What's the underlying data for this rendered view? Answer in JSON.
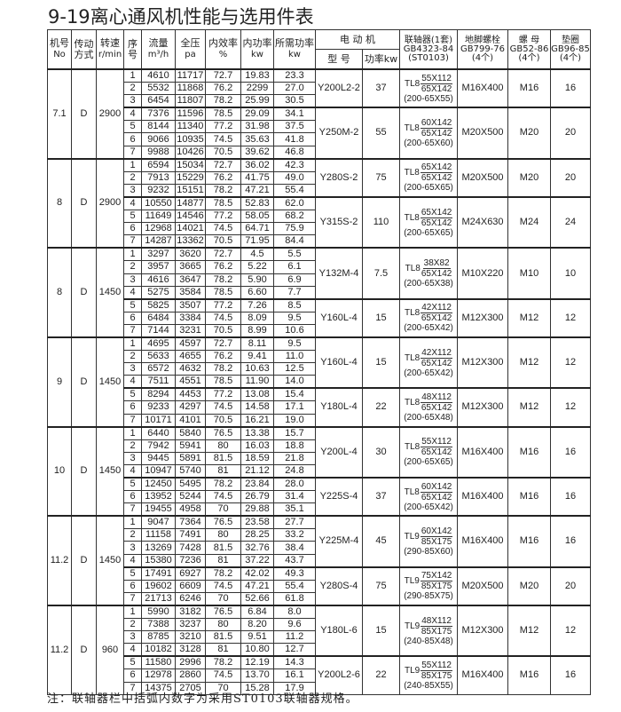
{
  "title": "9-19离心通风机性能与选用件表",
  "header": {
    "no": [
      "机号",
      "No"
    ],
    "drive": [
      "传动",
      "方式"
    ],
    "speed": [
      "转速",
      "r/min"
    ],
    "seq": [
      "序",
      "号"
    ],
    "flow": [
      "流量",
      "m³/h"
    ],
    "pressure": [
      "全压",
      "pa"
    ],
    "eff": [
      "内效率",
      "%"
    ],
    "ipower": [
      "内功率",
      "kw"
    ],
    "rpower": [
      "所需功率",
      "kw"
    ],
    "motor": "电 动 机",
    "model": "型 号",
    "mpower": "功率kw",
    "coupling": [
      "联轴器(1套)",
      "GB4323-84",
      "(ST0103)"
    ],
    "bolt": [
      "地脚螺栓",
      "GB799-76",
      "(4个)"
    ],
    "nut": [
      "螺 母",
      "GB52-86",
      "(4个)"
    ],
    "washer": [
      "垫圈",
      "GB96-85",
      "(4个)"
    ]
  },
  "groups": [
    {
      "no": "7.1",
      "drive": "D",
      "speed": "2900",
      "rows": [
        [
          "1",
          "4610",
          "11717",
          "72.7",
          "19.83",
          "23.3"
        ],
        [
          "2",
          "5532",
          "11868",
          "76.2",
          "2299",
          "27.0"
        ],
        [
          "3",
          "6454",
          "11807",
          "78.2",
          "25.99",
          "30.5"
        ],
        [
          "4",
          "7376",
          "11596",
          "78.5",
          "29.09",
          "34.1"
        ],
        [
          "5",
          "8144",
          "11340",
          "77.2",
          "31.98",
          "37.5"
        ],
        [
          "6",
          "9066",
          "10935",
          "74.5",
          "35.63",
          "41.8"
        ],
        [
          "7",
          "9988",
          "10426",
          "70.5",
          "39.62",
          "46.8"
        ]
      ],
      "motors": [
        {
          "span": 3,
          "model": "Y200L2-2",
          "power": "37",
          "coupling": {
            "type": "TL8",
            "top": "55X112",
            "bottom": "65X142",
            "st": "(200-65X55)"
          },
          "bolt": "M16X400",
          "nut": "M16",
          "washer": "16"
        },
        {
          "span": 4,
          "model": "Y250M-2",
          "power": "55",
          "coupling": {
            "type": "TL8",
            "top": "60X142",
            "bottom": "65X142",
            "st": "(200-65X60)"
          },
          "bolt": "M20X500",
          "nut": "M20",
          "washer": "20"
        }
      ]
    },
    {
      "no": "8",
      "drive": "D",
      "speed": "2900",
      "rows": [
        [
          "1",
          "6594",
          "15034",
          "72.7",
          "36.02",
          "42.3"
        ],
        [
          "2",
          "7913",
          "15229",
          "76.2",
          "41.75",
          "49.0"
        ],
        [
          "3",
          "9232",
          "15151",
          "78.2",
          "47.21",
          "55.4"
        ],
        [
          "4",
          "10550",
          "14877",
          "78.5",
          "52.83",
          "62.0"
        ],
        [
          "5",
          "11649",
          "14546",
          "77.2",
          "58.05",
          "68.2"
        ],
        [
          "6",
          "12968",
          "14021",
          "74.5",
          "64.71",
          "75.9"
        ],
        [
          "7",
          "14287",
          "13362",
          "70.5",
          "71.95",
          "84.4"
        ]
      ],
      "motors": [
        {
          "span": 3,
          "model": "Y280S-2",
          "power": "75",
          "coupling": {
            "type": "TL8",
            "top": "65X142",
            "bottom": "65X142",
            "st": "(200-65X65)"
          },
          "bolt": "M20X500",
          "nut": "M20",
          "washer": "20"
        },
        {
          "span": 4,
          "model": "Y315S-2",
          "power": "110",
          "coupling": {
            "type": "TL8",
            "top": "65X142",
            "bottom": "65X142",
            "st": "(200-65X65)"
          },
          "bolt": "M24X630",
          "nut": "M24",
          "washer": "24"
        }
      ]
    },
    {
      "no": "8",
      "drive": "D",
      "speed": "1450",
      "rows": [
        [
          "1",
          "3297",
          "3620",
          "72.7",
          "4.5",
          "5.5"
        ],
        [
          "2",
          "3957",
          "3665",
          "76.2",
          "5.22",
          "6.1"
        ],
        [
          "3",
          "4616",
          "3647",
          "78.2",
          "5.90",
          "6.9"
        ],
        [
          "4",
          "5275",
          "3584",
          "78.5",
          "6.60",
          "7.7"
        ],
        [
          "5",
          "5825",
          "3507",
          "77.2",
          "7.26",
          "8.5"
        ],
        [
          "6",
          "6484",
          "3384",
          "74.5",
          "8.09",
          "9.5"
        ],
        [
          "7",
          "7144",
          "3231",
          "70.5",
          "8.99",
          "10.6"
        ]
      ],
      "motors": [
        {
          "span": 4,
          "model": "Y132M-4",
          "power": "7.5",
          "coupling": {
            "type": "TL8",
            "top": "38X82",
            "bottom": "65X142",
            "st": "(200-65X38)"
          },
          "bolt": "M10X220",
          "nut": "M10",
          "washer": "10"
        },
        {
          "span": 3,
          "model": "Y160L-4",
          "power": "15",
          "coupling": {
            "type": "TL8",
            "top": "42X112",
            "bottom": "65X142",
            "st": "(200-65X42)"
          },
          "bolt": "M12X300",
          "nut": "M12",
          "washer": "12"
        }
      ]
    },
    {
      "no": "9",
      "drive": "D",
      "speed": "1450",
      "rows": [
        [
          "1",
          "4695",
          "4597",
          "72.7",
          "8.11",
          "9.5"
        ],
        [
          "2",
          "5633",
          "4655",
          "76.2",
          "9.41",
          "11.0"
        ],
        [
          "3",
          "6572",
          "4632",
          "78.2",
          "10.63",
          "12.5"
        ],
        [
          "4",
          "7511",
          "4551",
          "78.5",
          "11.90",
          "14.0"
        ],
        [
          "5",
          "8294",
          "4453",
          "77.2",
          "13.08",
          "15.4"
        ],
        [
          "6",
          "9233",
          "4297",
          "74.5",
          "14.58",
          "17.1"
        ],
        [
          "7",
          "10171",
          "4101",
          "70.5",
          "16.21",
          "19.0"
        ]
      ],
      "motors": [
        {
          "span": 4,
          "model": "Y160L-4",
          "power": "15",
          "coupling": {
            "type": "TL8",
            "top": "42X112",
            "bottom": "65X142",
            "st": "(200-65X42)"
          },
          "bolt": "M12X300",
          "nut": "M12",
          "washer": "12"
        },
        {
          "span": 3,
          "model": "Y180L-4",
          "power": "22",
          "coupling": {
            "type": "TL8",
            "top": "48X112",
            "bottom": "65X142",
            "st": "(200-65X48)"
          },
          "bolt": "M12X300",
          "nut": "M12",
          "washer": "12"
        }
      ]
    },
    {
      "no": "10",
      "drive": "D",
      "speed": "1450",
      "rows": [
        [
          "1",
          "6440",
          "5840",
          "76.5",
          "13.38",
          "15.7"
        ],
        [
          "2",
          "7942",
          "5941",
          "80",
          "16.03",
          "18.8"
        ],
        [
          "3",
          "9445",
          "5891",
          "81.5",
          "18.59",
          "21.8"
        ],
        [
          "4",
          "10947",
          "5740",
          "81",
          "21.12",
          "24.8"
        ],
        [
          "5",
          "12450",
          "5495",
          "78.2",
          "23.84",
          "28.0"
        ],
        [
          "6",
          "13952",
          "5244",
          "74.5",
          "26.79",
          "31.4"
        ],
        [
          "7",
          "19455",
          "4958",
          "70",
          "29.88",
          "35.1"
        ]
      ],
      "motors": [
        {
          "span": 4,
          "model": "Y200L-4",
          "power": "30",
          "coupling": {
            "type": "TL8",
            "top": "55X112",
            "bottom": "65X142",
            "st": "(200-65X65)"
          },
          "bolt": "M16X400",
          "nut": "M16",
          "washer": "16"
        },
        {
          "span": 3,
          "model": "Y225S-4",
          "power": "37",
          "coupling": {
            "type": "TL8",
            "top": "60X142",
            "bottom": "65X142",
            "st": "(200-65X42)"
          },
          "bolt": "M16X400",
          "nut": "M16",
          "washer": "16"
        }
      ]
    },
    {
      "no": "11.2",
      "drive": "D",
      "speed": "1450",
      "rows": [
        [
          "1",
          "9047",
          "7364",
          "76.5",
          "23.58",
          "27.7"
        ],
        [
          "2",
          "11158",
          "7491",
          "80",
          "28.25",
          "33.2"
        ],
        [
          "3",
          "13269",
          "7428",
          "81.5",
          "32.76",
          "38.4"
        ],
        [
          "4",
          "15380",
          "7236",
          "81",
          "37.22",
          "43.7"
        ],
        [
          "5",
          "17491",
          "6927",
          "78.2",
          "42.02",
          "49.3"
        ],
        [
          "6",
          "19602",
          "6609",
          "74.5",
          "47.21",
          "55.4"
        ],
        [
          "7",
          "21713",
          "6246",
          "70",
          "52.66",
          "61.8"
        ]
      ],
      "motors": [
        {
          "span": 4,
          "model": "Y225M-4",
          "power": "45",
          "coupling": {
            "type": "TL9",
            "top": "60X142",
            "bottom": "85X175",
            "st": "(290-85X60)"
          },
          "bolt": "M16X400",
          "nut": "M16",
          "washer": "16"
        },
        {
          "span": 3,
          "model": "Y280S-4",
          "power": "75",
          "coupling": {
            "type": "TL9",
            "top": "75X142",
            "bottom": "85X175",
            "st": "(290-85X75)"
          },
          "bolt": "M20X500",
          "nut": "M20",
          "washer": "20"
        }
      ]
    },
    {
      "no": "11.2",
      "drive": "D",
      "speed": "960",
      "rows": [
        [
          "1",
          "5990",
          "3182",
          "76.5",
          "6.84",
          "8.0"
        ],
        [
          "2",
          "7388",
          "3237",
          "80",
          "8.20",
          "9.6"
        ],
        [
          "3",
          "8785",
          "3210",
          "81.5",
          "9.51",
          "11.2"
        ],
        [
          "4",
          "10182",
          "3128",
          "81",
          "10.80",
          "12.7"
        ],
        [
          "5",
          "11580",
          "2996",
          "78.2",
          "12.19",
          "14.3"
        ],
        [
          "6",
          "12978",
          "2860",
          "74.5",
          "13.70",
          "16.1"
        ],
        [
          "7",
          "14375",
          "2705",
          "70",
          "15.28",
          "17.9"
        ]
      ],
      "motors": [
        {
          "span": 4,
          "model": "Y180L-6",
          "power": "15",
          "coupling": {
            "type": "TL9",
            "top": "48X112",
            "bottom": "85X175",
            "st": "(240-85X48)"
          },
          "bolt": "M12X300",
          "nut": "M12",
          "washer": "12"
        },
        {
          "span": 3,
          "model": "Y200L2-6",
          "power": "22",
          "coupling": {
            "type": "TL9",
            "top": "55X112",
            "bottom": "85X175",
            "st": "(240-85X55)"
          },
          "bolt": "M16X400",
          "nut": "M16",
          "washer": "16"
        }
      ]
    }
  ],
  "footnote": "注：联轴器栏中括弧内数字为采用ST0103联轴器规格。"
}
